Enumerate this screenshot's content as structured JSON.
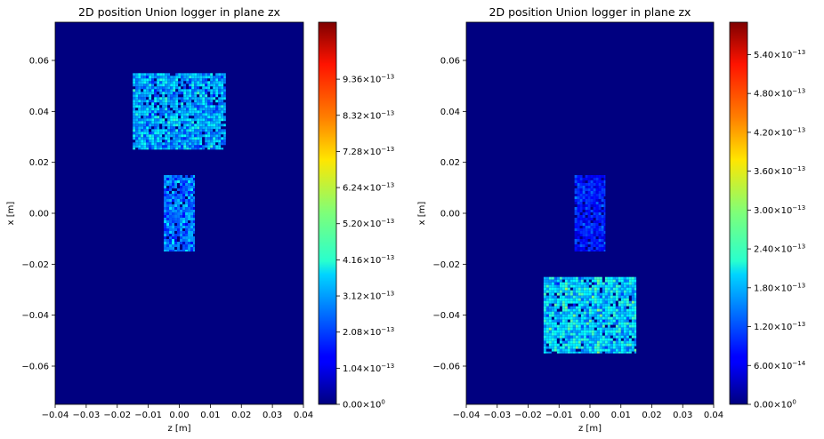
{
  "chart_data": [
    {
      "type": "heatmap",
      "title": "2D position Union logger in plane zx",
      "xlabel": "z [m]",
      "ylabel": "x [m]",
      "xlim": [
        -0.04,
        0.04
      ],
      "ylim": [
        -0.075,
        0.075
      ],
      "xticks": [
        -0.04,
        -0.03,
        -0.02,
        -0.01,
        0.0,
        0.01,
        0.02,
        0.03,
        0.04
      ],
      "xtick_labels": [
        "−0.04",
        "−0.03",
        "−0.02",
        "−0.01",
        "0.00",
        "0.01",
        "0.02",
        "0.03",
        "0.04"
      ],
      "yticks": [
        0.06,
        0.04,
        0.02,
        0.0,
        -0.02,
        -0.04,
        -0.06
      ],
      "ytick_labels": [
        "0.06",
        "0.04",
        "0.02",
        "0.00",
        "−0.02",
        "−0.04",
        "−0.06"
      ],
      "colormap": "jet",
      "colorbar": {
        "min": 0.0,
        "max": 1.1e-12,
        "ticks": [
          0.0,
          1.04e-13,
          2.08e-13,
          3.12e-13,
          4.16e-13,
          5.2e-13,
          6.24e-13,
          7.28e-13,
          8.32e-13,
          9.36e-13
        ],
        "tick_mantissas": [
          "0.00",
          "1.04",
          "2.08",
          "3.12",
          "4.16",
          "5.20",
          "6.24",
          "7.28",
          "8.32",
          "9.36"
        ],
        "tick_exponents": [
          "0",
          "−13",
          "−13",
          "−13",
          "−13",
          "−13",
          "−13",
          "−13",
          "−13",
          "−13"
        ]
      },
      "regions": [
        {
          "name": "upper-box",
          "z": [
            -0.015,
            0.015
          ],
          "x": [
            0.025,
            0.055
          ],
          "mean": 3.2e-13,
          "spread": 2e-13
        },
        {
          "name": "center-bar",
          "z": [
            -0.005,
            0.005
          ],
          "x": [
            -0.015,
            0.015
          ],
          "mean": 2.6e-13,
          "spread": 2e-13
        }
      ]
    },
    {
      "type": "heatmap",
      "title": "2D position Union logger in plane zx",
      "xlabel": "z [m]",
      "ylabel": "x [m]",
      "xlim": [
        -0.04,
        0.04
      ],
      "ylim": [
        -0.075,
        0.075
      ],
      "xticks": [
        -0.04,
        -0.03,
        -0.02,
        -0.01,
        0.0,
        0.01,
        0.02,
        0.03,
        0.04
      ],
      "xtick_labels": [
        "−0.04",
        "−0.03",
        "−0.02",
        "−0.01",
        "0.00",
        "0.01",
        "0.02",
        "0.03",
        "0.04"
      ],
      "yticks": [
        0.06,
        0.04,
        0.02,
        0.0,
        -0.02,
        -0.04,
        -0.06
      ],
      "ytick_labels": [
        "0.06",
        "0.04",
        "0.02",
        "0.00",
        "−0.02",
        "−0.04",
        "−0.06"
      ],
      "colormap": "jet",
      "colorbar": {
        "min": 0.0,
        "max": 5.9e-13,
        "ticks": [
          0.0,
          6e-14,
          1.2e-13,
          1.8e-13,
          2.4e-13,
          3e-13,
          3.6e-13,
          4.2e-13,
          4.8e-13,
          5.4e-13
        ],
        "tick_mantissas": [
          "0.00",
          "6.00",
          "1.20",
          "1.80",
          "2.40",
          "3.00",
          "3.60",
          "4.20",
          "4.80",
          "5.40"
        ],
        "tick_exponents": [
          "0",
          "−14",
          "−13",
          "−13",
          "−13",
          "−13",
          "−13",
          "−13",
          "−13",
          "−13"
        ]
      },
      "regions": [
        {
          "name": "center-bar",
          "z": [
            -0.005,
            0.005
          ],
          "x": [
            -0.015,
            0.015
          ],
          "mean": 9e-14,
          "spread": 7e-14
        },
        {
          "name": "lower-box",
          "z": [
            -0.015,
            0.015
          ],
          "x": [
            -0.055,
            -0.025
          ],
          "mean": 2e-13,
          "spread": 1.2e-13
        }
      ]
    }
  ]
}
